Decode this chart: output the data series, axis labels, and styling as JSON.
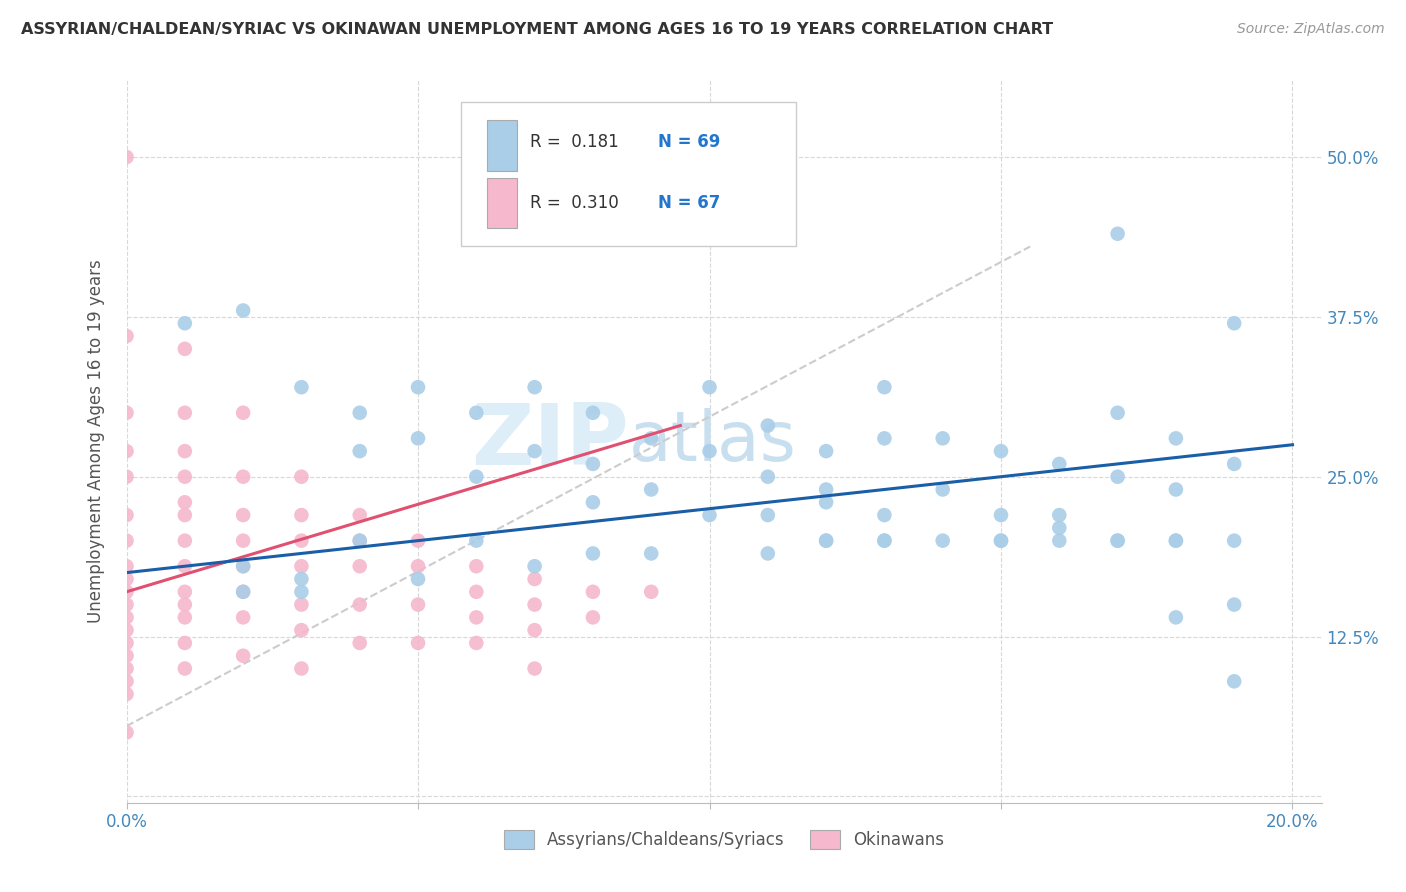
{
  "title": "ASSYRIAN/CHALDEAN/SYRIAC VS OKINAWAN UNEMPLOYMENT AMONG AGES 16 TO 19 YEARS CORRELATION CHART",
  "source": "Source: ZipAtlas.com",
  "ylabel": "Unemployment Among Ages 16 to 19 years",
  "xlim": [
    0.0,
    0.205
  ],
  "ylim": [
    -0.005,
    0.56
  ],
  "xticks": [
    0.0,
    0.05,
    0.1,
    0.15,
    0.2
  ],
  "xticklabels": [
    "0.0%",
    "",
    "",
    "",
    "20.0%"
  ],
  "yticks": [
    0.0,
    0.125,
    0.25,
    0.375,
    0.5
  ],
  "yticklabels": [
    "",
    "12.5%",
    "25.0%",
    "37.5%",
    "50.0%"
  ],
  "background_color": "#ffffff",
  "grid_color": "#d8d8d8",
  "watermark": "ZIPatlas",
  "legend_R1": "R =  0.181",
  "legend_N1": "N = 69",
  "legend_R2": "R =  0.310",
  "legend_N2": "N = 67",
  "legend_label1": "Assyrians/Chaldeans/Syriacs",
  "legend_label2": "Okinawans",
  "blue_scatter_color": "#aacde8",
  "pink_scatter_color": "#f5b8cc",
  "trendline_blue": "#1a5ea8",
  "trendline_pink": "#e05070",
  "trendline_gray": "#cccccc",
  "blue_x": [
    0.01,
    0.02,
    0.03,
    0.04,
    0.04,
    0.05,
    0.05,
    0.06,
    0.06,
    0.07,
    0.07,
    0.08,
    0.08,
    0.08,
    0.09,
    0.09,
    0.1,
    0.1,
    0.1,
    0.11,
    0.11,
    0.11,
    0.12,
    0.12,
    0.12,
    0.12,
    0.13,
    0.13,
    0.13,
    0.13,
    0.14,
    0.14,
    0.14,
    0.15,
    0.15,
    0.15,
    0.16,
    0.16,
    0.16,
    0.17,
    0.17,
    0.17,
    0.17,
    0.18,
    0.18,
    0.18,
    0.18,
    0.19,
    0.19,
    0.19,
    0.19,
    0.19,
    0.02,
    0.02,
    0.03,
    0.03,
    0.04,
    0.05,
    0.06,
    0.07,
    0.08,
    0.09,
    0.11,
    0.12,
    0.13,
    0.15,
    0.16,
    0.17,
    0.18
  ],
  "blue_y": [
    0.37,
    0.38,
    0.32,
    0.3,
    0.27,
    0.32,
    0.28,
    0.3,
    0.25,
    0.32,
    0.27,
    0.3,
    0.26,
    0.23,
    0.28,
    0.24,
    0.32,
    0.27,
    0.22,
    0.29,
    0.25,
    0.22,
    0.27,
    0.24,
    0.23,
    0.2,
    0.32,
    0.28,
    0.22,
    0.2,
    0.28,
    0.24,
    0.2,
    0.27,
    0.22,
    0.2,
    0.26,
    0.22,
    0.2,
    0.44,
    0.3,
    0.25,
    0.2,
    0.28,
    0.24,
    0.2,
    0.14,
    0.37,
    0.26,
    0.2,
    0.15,
    0.09,
    0.18,
    0.16,
    0.17,
    0.16,
    0.2,
    0.17,
    0.2,
    0.18,
    0.19,
    0.19,
    0.19,
    0.2,
    0.2,
    0.2,
    0.21,
    0.2,
    0.2
  ],
  "pink_x": [
    0.0,
    0.0,
    0.0,
    0.0,
    0.0,
    0.0,
    0.0,
    0.0,
    0.0,
    0.0,
    0.0,
    0.0,
    0.0,
    0.0,
    0.0,
    0.0,
    0.0,
    0.0,
    0.0,
    0.01,
    0.01,
    0.01,
    0.01,
    0.01,
    0.01,
    0.01,
    0.01,
    0.01,
    0.01,
    0.01,
    0.01,
    0.01,
    0.02,
    0.02,
    0.02,
    0.02,
    0.02,
    0.02,
    0.02,
    0.02,
    0.03,
    0.03,
    0.03,
    0.03,
    0.03,
    0.03,
    0.03,
    0.04,
    0.04,
    0.04,
    0.04,
    0.04,
    0.05,
    0.05,
    0.05,
    0.05,
    0.06,
    0.06,
    0.06,
    0.06,
    0.07,
    0.07,
    0.07,
    0.07,
    0.08,
    0.08,
    0.09
  ],
  "pink_y": [
    0.5,
    0.36,
    0.3,
    0.27,
    0.25,
    0.22,
    0.2,
    0.18,
    0.17,
    0.16,
    0.15,
    0.14,
    0.13,
    0.12,
    0.11,
    0.1,
    0.09,
    0.08,
    0.05,
    0.35,
    0.3,
    0.27,
    0.25,
    0.23,
    0.22,
    0.2,
    0.18,
    0.16,
    0.15,
    0.14,
    0.12,
    0.1,
    0.3,
    0.25,
    0.22,
    0.2,
    0.18,
    0.16,
    0.14,
    0.11,
    0.25,
    0.22,
    0.2,
    0.18,
    0.15,
    0.13,
    0.1,
    0.22,
    0.2,
    0.18,
    0.15,
    0.12,
    0.2,
    0.18,
    0.15,
    0.12,
    0.18,
    0.16,
    0.14,
    0.12,
    0.17,
    0.15,
    0.13,
    0.1,
    0.16,
    0.14,
    0.16
  ],
  "blue_trend_x": [
    0.0,
    0.2
  ],
  "blue_trend_y": [
    0.175,
    0.275
  ],
  "gray_trend_x": [
    0.0,
    0.155
  ],
  "gray_trend_y": [
    0.055,
    0.43
  ],
  "pink_trend_x": [
    0.0,
    0.095
  ],
  "pink_trend_y": [
    0.16,
    0.29
  ]
}
